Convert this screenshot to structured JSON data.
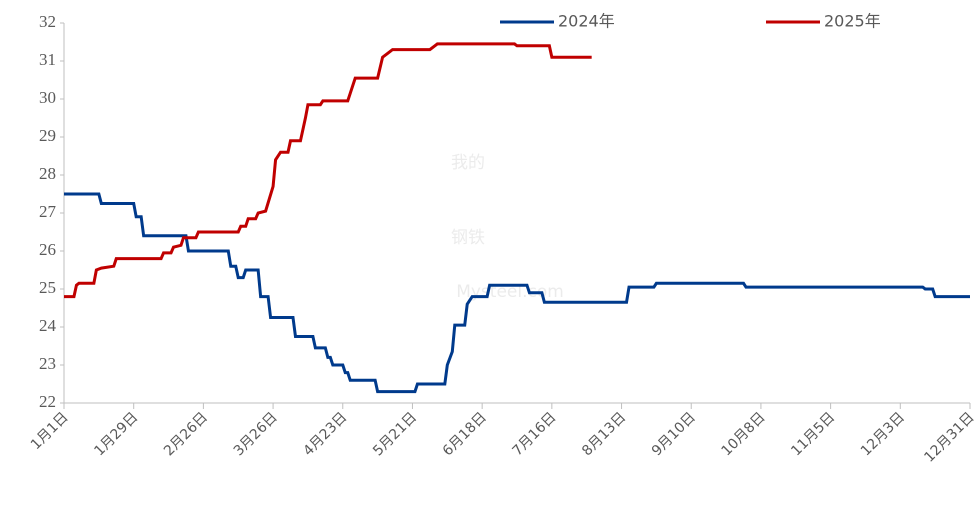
{
  "chart_data": {
    "type": "line",
    "watermark": [
      "我的",
      "钢铁",
      "Mysteel.com"
    ],
    "xlim": [
      0,
      364
    ],
    "xticks": [
      {
        "value": 0,
        "label": "1月1日"
      },
      {
        "value": 28,
        "label": "1月29日"
      },
      {
        "value": 56,
        "label": "2月26日"
      },
      {
        "value": 84,
        "label": "3月26日"
      },
      {
        "value": 112,
        "label": "4月23日"
      },
      {
        "value": 140,
        "label": "5月21日"
      },
      {
        "value": 168,
        "label": "6月18日"
      },
      {
        "value": 196,
        "label": "7月16日"
      },
      {
        "value": 224,
        "label": "8月13日"
      },
      {
        "value": 252,
        "label": "9月10日"
      },
      {
        "value": 280,
        "label": "10月8日"
      },
      {
        "value": 308,
        "label": "11月5日"
      },
      {
        "value": 336,
        "label": "12月3日"
      },
      {
        "value": 364,
        "label": "12月31日"
      }
    ],
    "ylim": [
      22,
      32
    ],
    "yticks": [
      22,
      23,
      24,
      25,
      26,
      27,
      28,
      29,
      30,
      31,
      32
    ],
    "series": [
      {
        "name": "2024年",
        "color": "#003a8c",
        "x": [
          0,
          14,
          15,
          28,
          29,
          31,
          32,
          49,
          50,
          66,
          67,
          69,
          70,
          72,
          73,
          78,
          79,
          82,
          83,
          92,
          93,
          100,
          101,
          105,
          106,
          107,
          108,
          112,
          113,
          114,
          115,
          125,
          126,
          141,
          142,
          153,
          154,
          156,
          157,
          161,
          162,
          164,
          170,
          171,
          186,
          187,
          192,
          193,
          226,
          227,
          237,
          238,
          273,
          274,
          345,
          346,
          349,
          350,
          364
        ],
        "values": [
          27.5,
          27.5,
          27.25,
          27.25,
          26.9,
          26.9,
          26.4,
          26.4,
          26.0,
          26.0,
          25.6,
          25.6,
          25.3,
          25.3,
          25.5,
          25.5,
          24.8,
          24.8,
          24.25,
          24.25,
          23.75,
          23.75,
          23.45,
          23.45,
          23.2,
          23.2,
          23.0,
          23.0,
          22.8,
          22.8,
          22.6,
          22.6,
          22.3,
          22.3,
          22.5,
          22.5,
          23.0,
          23.35,
          24.05,
          24.05,
          24.6,
          24.8,
          24.8,
          25.1,
          25.1,
          24.9,
          24.9,
          24.65,
          24.65,
          25.05,
          25.05,
          25.15,
          25.15,
          25.05,
          25.05,
          25.0,
          25.0,
          24.8,
          24.8
        ]
      },
      {
        "name": "2025年",
        "color": "#c00000",
        "x": [
          0,
          4,
          5,
          6,
          12,
          13,
          15,
          20,
          21,
          39,
          40,
          43,
          44,
          47,
          48,
          53,
          54,
          70,
          71,
          73,
          74,
          77,
          78,
          81,
          84,
          85,
          87,
          90,
          91,
          95,
          97,
          98,
          103,
          104,
          114,
          115,
          117,
          126,
          128,
          130,
          132,
          147,
          149,
          150,
          181,
          182,
          195,
          196,
          212
        ],
        "values": [
          24.8,
          24.8,
          25.1,
          25.15,
          25.15,
          25.5,
          25.55,
          25.6,
          25.8,
          25.8,
          25.95,
          25.95,
          26.1,
          26.15,
          26.35,
          26.35,
          26.5,
          26.5,
          26.65,
          26.65,
          26.85,
          26.85,
          27.0,
          27.05,
          27.7,
          28.4,
          28.6,
          28.6,
          28.9,
          28.9,
          29.5,
          29.85,
          29.85,
          29.95,
          29.95,
          30.15,
          30.55,
          30.55,
          31.1,
          31.2,
          31.3,
          31.3,
          31.4,
          31.45,
          31.45,
          31.4,
          31.4,
          31.1,
          31.1
        ]
      }
    ]
  }
}
